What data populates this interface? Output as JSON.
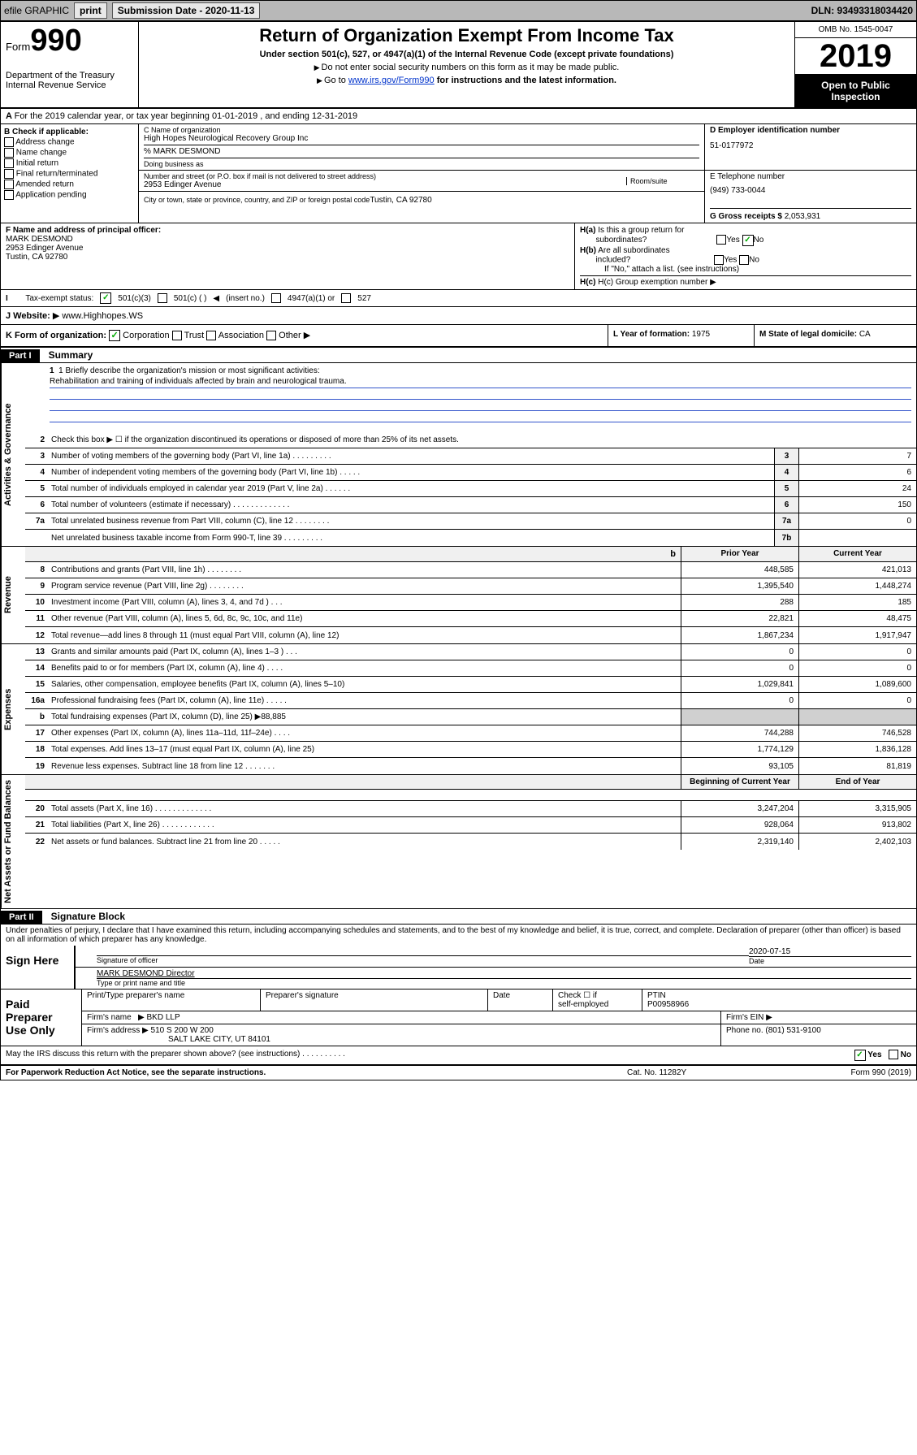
{
  "topbar": {
    "efile": "efile GRAPHIC",
    "print": "print",
    "sub_label": "Submission Date - 2020-11-13",
    "dln": "DLN: 93493318034420"
  },
  "header": {
    "form_label": "Form",
    "form_num": "990",
    "dept": "Department of the Treasury\nInternal Revenue Service",
    "title": "Return of Organization Exempt From Income Tax",
    "sub": "Under section 501(c), 527, or 4947(a)(1) of the Internal Revenue Code (except private foundations)",
    "note1": "Do not enter social security numbers on this form as it may be made public.",
    "note2_pre": "Go to ",
    "note2_link": "www.irs.gov/Form990",
    "note2_post": " for instructions and the latest information.",
    "omb": "OMB No. 1545-0047",
    "year": "2019",
    "open": "Open to Public Inspection"
  },
  "row_a": {
    "text": "For the 2019 calendar year, or tax year beginning 01-01-2019   , and ending 12-31-2019"
  },
  "col_b": {
    "hdr": "B Check if applicable:",
    "items": [
      "Address change",
      "Name change",
      "Initial return",
      "Final return/terminated",
      "Amended return",
      "Application pending"
    ]
  },
  "name": {
    "c_lbl": "C Name of organization",
    "org": "High Hopes Neurological Recovery Group Inc",
    "care": "% MARK DESMOND",
    "dba_lbl": "Doing business as",
    "d_lbl": "D Employer identification number",
    "ein": "51-0177972",
    "addr_lbl": "Number and street (or P.O. box if mail is not delivered to street address)",
    "room_lbl": "Room/suite",
    "addr": "2953 Edinger Avenue",
    "city_lbl": "City or town, state or province, country, and ZIP or foreign postal code",
    "city": "Tustin, CA  92780",
    "e_lbl": "E Telephone number",
    "phone": "(949) 733-0044",
    "g_lbl": "G Gross receipts $",
    "gross": "2,053,931"
  },
  "fg": {
    "f_lbl": "F Name and address of principal officer:",
    "f_name": "MARK DESMOND",
    "f_addr1": "2953 Edinger Avenue",
    "f_addr2": "Tustin, CA  92780",
    "ha_lbl": "H(a) Is this a group return for subordinates?",
    "hb_lbl": "H(b) Are all subordinates included?",
    "hb_note": "If \"No,\" attach a list. (see instructions)",
    "hc_lbl": "H(c) Group exemption number"
  },
  "tax": {
    "lbl": "Tax-exempt status:",
    "opt1": "501(c)(3)",
    "opt2": "501(c) (  )",
    "opt2_note": "(insert no.)",
    "opt3": "4947(a)(1) or",
    "opt4": "527"
  },
  "j": {
    "lbl": "J  Website:",
    "val": "www.Highhopes.WS"
  },
  "k": {
    "lbl": "K Form of organization:",
    "opts": [
      "Corporation",
      "Trust",
      "Association",
      "Other"
    ],
    "l_lbl": "L Year of formation:",
    "l_val": "1975",
    "m_lbl": "M State of legal domicile:",
    "m_val": "CA"
  },
  "part1": {
    "hdr": "Part I",
    "title": "Summary"
  },
  "mission": {
    "lbl": "1  Briefly describe the organization's mission or most significant activities:",
    "text": "Rehabilitation and training of individuals affected by brain and neurological trauma."
  },
  "lines_gov": [
    {
      "n": "2",
      "d": "Check this box ▶ ☐ if the organization discontinued its operations or disposed of more than 25% of its net assets."
    },
    {
      "n": "3",
      "d": "Number of voting members of the governing body (Part VI, line 1a)  .  .  .  .  .  .  .  .  .",
      "b": "3",
      "v": "7"
    },
    {
      "n": "4",
      "d": "Number of independent voting members of the governing body (Part VI, line 1b)  .  .  .  .  .",
      "b": "4",
      "v": "6"
    },
    {
      "n": "5",
      "d": "Total number of individuals employed in calendar year 2019 (Part V, line 2a)  .  .  .  .  .  .",
      "b": "5",
      "v": "24"
    },
    {
      "n": "6",
      "d": "Total number of volunteers (estimate if necessary)  .  .  .  .  .  .  .  .  .  .  .  .  .",
      "b": "6",
      "v": "150"
    },
    {
      "n": "7a",
      "d": "Total unrelated business revenue from Part VIII, column (C), line 12  .  .  .  .  .  .  .  .",
      "b": "7a",
      "v": "0"
    },
    {
      "n": "",
      "d": "Net unrelated business taxable income from Form 990-T, line 39  .  .  .  .  .  .  .  .  .",
      "b": "7b",
      "v": ""
    }
  ],
  "col_headers": {
    "prior": "Prior Year",
    "current": "Current Year",
    "begin": "Beginning of Current Year",
    "end": "End of Year"
  },
  "lines_rev": [
    {
      "n": "8",
      "d": "Contributions and grants (Part VIII, line 1h)  .  .  .  .  .  .  .  .",
      "v1": "448,585",
      "v2": "421,013"
    },
    {
      "n": "9",
      "d": "Program service revenue (Part VIII, line 2g)  .  .  .  .  .  .  .  .",
      "v1": "1,395,540",
      "v2": "1,448,274"
    },
    {
      "n": "10",
      "d": "Investment income (Part VIII, column (A), lines 3, 4, and 7d )  .  .  .",
      "v1": "288",
      "v2": "185"
    },
    {
      "n": "11",
      "d": "Other revenue (Part VIII, column (A), lines 5, 6d, 8c, 9c, 10c, and 11e)",
      "v1": "22,821",
      "v2": "48,475"
    },
    {
      "n": "12",
      "d": "Total revenue—add lines 8 through 11 (must equal Part VIII, column (A), line 12)",
      "v1": "1,867,234",
      "v2": "1,917,947"
    }
  ],
  "lines_exp": [
    {
      "n": "13",
      "d": "Grants and similar amounts paid (Part IX, column (A), lines 1–3 )  .  .  .",
      "v1": "0",
      "v2": "0"
    },
    {
      "n": "14",
      "d": "Benefits paid to or for members (Part IX, column (A), line 4)  .  .  .  .",
      "v1": "0",
      "v2": "0"
    },
    {
      "n": "15",
      "d": "Salaries, other compensation, employee benefits (Part IX, column (A), lines 5–10)",
      "v1": "1,029,841",
      "v2": "1,089,600"
    },
    {
      "n": "16a",
      "d": "Professional fundraising fees (Part IX, column (A), line 11e)  .  .  .  .  .",
      "v1": "0",
      "v2": "0"
    },
    {
      "n": "b",
      "d": "Total fundraising expenses (Part IX, column (D), line 25) ▶88,885",
      "shaded": true
    },
    {
      "n": "17",
      "d": "Other expenses (Part IX, column (A), lines 11a–11d, 11f–24e)  .  .  .  .",
      "v1": "744,288",
      "v2": "746,528"
    },
    {
      "n": "18",
      "d": "Total expenses. Add lines 13–17 (must equal Part IX, column (A), line 25)",
      "v1": "1,774,129",
      "v2": "1,836,128"
    },
    {
      "n": "19",
      "d": "Revenue less expenses. Subtract line 18 from line 12  .  .  .  .  .  .  .",
      "v1": "93,105",
      "v2": "81,819"
    }
  ],
  "lines_net": [
    {
      "n": "20",
      "d": "Total assets (Part X, line 16)  .  .  .  .  .  .  .  .  .  .  .  .  .",
      "v1": "3,247,204",
      "v2": "3,315,905"
    },
    {
      "n": "21",
      "d": "Total liabilities (Part X, line 26)  .  .  .  .  .  .  .  .  .  .  .  .",
      "v1": "928,064",
      "v2": "913,802"
    },
    {
      "n": "22",
      "d": "Net assets or fund balances. Subtract line 21 from line 20  .  .  .  .  .",
      "v1": "2,319,140",
      "v2": "2,402,103"
    }
  ],
  "part2": {
    "hdr": "Part II",
    "title": "Signature Block"
  },
  "perjury": "Under penalties of perjury, I declare that I have examined this return, including accompanying schedules and statements, and to the best of my knowledge and belief, it is true, correct, and complete. Declaration of preparer (other than officer) is based on all information of which preparer has any knowledge.",
  "sign": {
    "lbl": "Sign Here",
    "sig_lbl": "Signature of officer",
    "date": "2020-07-15",
    "date_lbl": "Date",
    "name": "MARK DESMOND Director",
    "name_lbl": "Type or print name and title"
  },
  "paid": {
    "lbl": "Paid Preparer Use Only",
    "h1": "Print/Type preparer's name",
    "h2": "Preparer's signature",
    "h3": "Date",
    "h4_a": "Check ☐ if",
    "h4_b": "self-employed",
    "h5": "PTIN",
    "ptin": "P00958966",
    "firm_lbl": "Firm's name",
    "firm": "BKD LLP",
    "ein_lbl": "Firm's EIN",
    "addr_lbl": "Firm's address",
    "addr1": "510 S 200 W 200",
    "addr2": "SALT LAKE CITY, UT  84101",
    "phone_lbl": "Phone no.",
    "phone": "(801) 531-9100"
  },
  "footer": {
    "discuss": "May the IRS discuss this return with the preparer shown above? (see instructions)  .  .  .  .  .  .  .  .  .  .",
    "yes": "Yes",
    "no": "No",
    "paperwork": "For Paperwork Reduction Act Notice, see the separate instructions.",
    "cat": "Cat. No. 11282Y",
    "form": "Form 990 (2019)"
  },
  "vtabs": {
    "gov": "Activities & Governance",
    "rev": "Revenue",
    "exp": "Expenses",
    "net": "Net Assets or Fund Balances"
  }
}
